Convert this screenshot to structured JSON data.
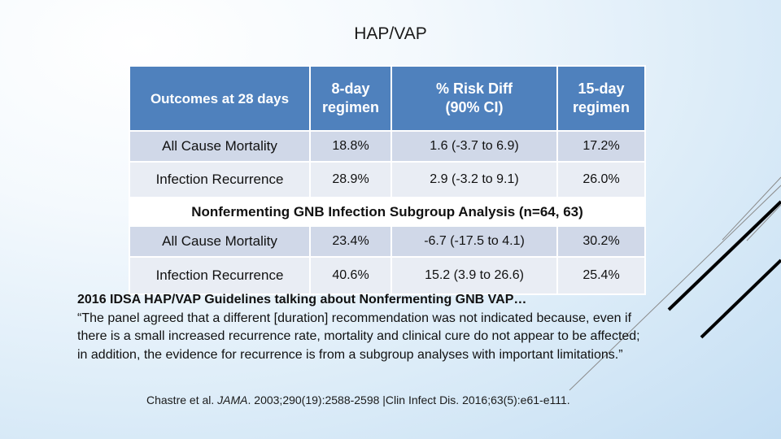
{
  "title": "HAP/VAP",
  "table": {
    "headers": [
      "Outcomes at 28 days",
      "8-day regimen",
      "% Risk Diff (90% CI)",
      "15-day regimen"
    ],
    "header_lines": {
      "col1": [
        "8-day",
        "regimen"
      ],
      "col2": [
        "% Risk Diff",
        "(90% CI)"
      ],
      "col3": [
        "15-day",
        "regimen"
      ]
    },
    "rows": [
      {
        "label": "All Cause Mortality",
        "day8": "18.8%",
        "risk": "1.6 (-3.7 to 6.9)",
        "day15": "17.2%"
      },
      {
        "label": "Infection Recurrence",
        "day8": "28.9%",
        "risk": "2.9 (-3.2 to 9.1)",
        "day15": "26.0%"
      }
    ],
    "subgroup_title": "Nonfermenting GNB Infection Subgroup Analysis (n=64, 63)",
    "subgroup_rows": [
      {
        "label": "All Cause Mortality",
        "day8": "23.4%",
        "risk": "-6.7 (-17.5 to 4.1)",
        "day15": "30.2%"
      },
      {
        "label": "Infection Recurrence",
        "day8": "40.6%",
        "risk": "15.2 (3.9 to 26.6)",
        "day15": "25.4%"
      }
    ]
  },
  "quote": {
    "heading": "2016 IDSA HAP/VAP Guidelines talking about Nonfermenting GNB VAP…",
    "text": "“The panel agreed that a different [duration] recommendation was not indicated because, even if there is a small increased recurrence rate, mortality and clinical cure do not appear to be affected; in addition, the evidence for recurrence is from a subgroup analyses with important limitations.”"
  },
  "citation": {
    "author": "Chastre et al. ",
    "journal": "JAMA",
    "rest": ". 2003;290(19):2588-2598 |Clin Infect Dis. 2016;63(5):e61-e111."
  },
  "colors": {
    "header_blue": "#4f81bd",
    "row_dark": "#d0d8e8",
    "row_light": "#e9edf4"
  }
}
